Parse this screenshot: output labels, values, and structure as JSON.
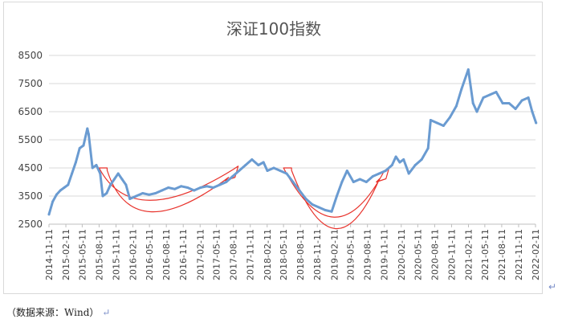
{
  "chart_data": {
    "type": "line",
    "title": "深证100指数",
    "xlabel": "",
    "ylabel": "",
    "ylim": [
      2500,
      8500
    ],
    "y_ticks": [
      "2500",
      "3500",
      "4500",
      "5500",
      "6500",
      "7500",
      "8500"
    ],
    "y_tick_values": [
      2500,
      3500,
      4500,
      5500,
      6500,
      7500,
      8500
    ],
    "grid": "horizontal",
    "x_ticks": [
      "2014-11-11",
      "2015-02-11",
      "2015-05-11",
      "2015-08-11",
      "2015-11-11",
      "2016-02-11",
      "2016-05-11",
      "2016-08-11",
      "2016-11-11",
      "2017-02-11",
      "2017-05-11",
      "2017-08-11",
      "2017-11-11",
      "2018-02-11",
      "2018-05-11",
      "2018-08-11",
      "2018-11-11",
      "2019-02-11",
      "2019-05-11",
      "2019-08-11",
      "2019-11-11",
      "2020-02-11",
      "2020-05-11",
      "2020-08-11",
      "2020-11-11",
      "2021-02-11",
      "2021-05-11",
      "2021-08-11",
      "2021-11-11",
      "2022-02-11"
    ],
    "series": [
      {
        "name": "",
        "color": "#6a9bd1",
        "x": [
          "2014-11-11",
          "2014-12-01",
          "2014-12-22",
          "2015-01-12",
          "2015-02-02",
          "2015-02-23",
          "2015-03-16",
          "2015-04-06",
          "2015-04-27",
          "2015-05-18",
          "2015-06-08",
          "2015-06-15",
          "2015-07-06",
          "2015-07-27",
          "2015-08-17",
          "2015-08-31",
          "2015-09-21",
          "2015-10-12",
          "2015-11-02",
          "2015-11-23",
          "2015-12-14",
          "2016-01-04",
          "2016-01-25",
          "2016-02-29",
          "2016-04-04",
          "2016-05-09",
          "2016-06-13",
          "2016-07-18",
          "2016-08-22",
          "2016-09-26",
          "2016-10-31",
          "2016-12-05",
          "2017-01-09",
          "2017-02-13",
          "2017-03-20",
          "2017-04-24",
          "2017-05-29",
          "2017-07-03",
          "2017-08-07",
          "2017-09-11",
          "2017-10-16",
          "2017-11-20",
          "2017-12-25",
          "2018-01-22",
          "2018-02-12",
          "2018-03-19",
          "2018-04-23",
          "2018-05-28",
          "2018-07-02",
          "2018-08-06",
          "2018-09-10",
          "2018-10-15",
          "2018-11-19",
          "2018-12-24",
          "2019-01-28",
          "2019-02-25",
          "2019-03-25",
          "2019-04-22",
          "2019-05-27",
          "2019-07-01",
          "2019-08-05",
          "2019-09-09",
          "2019-10-14",
          "2019-11-18",
          "2019-12-23",
          "2020-01-13",
          "2020-02-03",
          "2020-02-24",
          "2020-03-23",
          "2020-04-27",
          "2020-06-01",
          "2020-07-06",
          "2020-07-20",
          "2020-08-24",
          "2020-09-28",
          "2020-11-02",
          "2020-12-07",
          "2021-01-04",
          "2021-02-10",
          "2021-03-08",
          "2021-03-29",
          "2021-05-03",
          "2021-06-07",
          "2021-07-12",
          "2021-08-16",
          "2021-09-20",
          "2021-10-25",
          "2021-11-29",
          "2022-01-03",
          "2022-01-24",
          "2022-02-14"
        ],
        "values": [
          2850,
          3300,
          3550,
          3700,
          3800,
          3900,
          4300,
          4700,
          5200,
          5300,
          5900,
          5700,
          4500,
          4600,
          4300,
          3500,
          3600,
          3900,
          4100,
          4300,
          4100,
          3900,
          3400,
          3500,
          3600,
          3550,
          3600,
          3700,
          3800,
          3750,
          3850,
          3800,
          3700,
          3800,
          3850,
          3800,
          3900,
          4000,
          4200,
          4400,
          4600,
          4800,
          4600,
          4700,
          4400,
          4500,
          4400,
          4300,
          4000,
          3700,
          3400,
          3200,
          3100,
          3000,
          2950,
          3500,
          4000,
          4400,
          4000,
          4100,
          4000,
          4200,
          4300,
          4400,
          4600,
          4900,
          4700,
          4800,
          4300,
          4600,
          4800,
          5200,
          6200,
          6100,
          6000,
          6300,
          6700,
          7300,
          8000,
          6800,
          6500,
          7000,
          7100,
          7200,
          6800,
          6800,
          6600,
          6900,
          7000,
          6500,
          6100
        ]
      }
    ],
    "annotations": [
      {
        "shape": "curved-arrow",
        "from": [
          "2015-08-11",
          4500
        ],
        "via": [
          "2016-05-11",
          3350
        ],
        "to": [
          "2017-08-11",
          4450
        ]
      },
      {
        "shape": "curved-arrow",
        "from": [
          "2018-05-11",
          4500
        ],
        "via": [
          "2019-02-11",
          2750
        ],
        "to": [
          "2019-11-11",
          4400
        ]
      }
    ]
  },
  "source_note": "（数据来源：Wind）",
  "return_mark": "↵"
}
